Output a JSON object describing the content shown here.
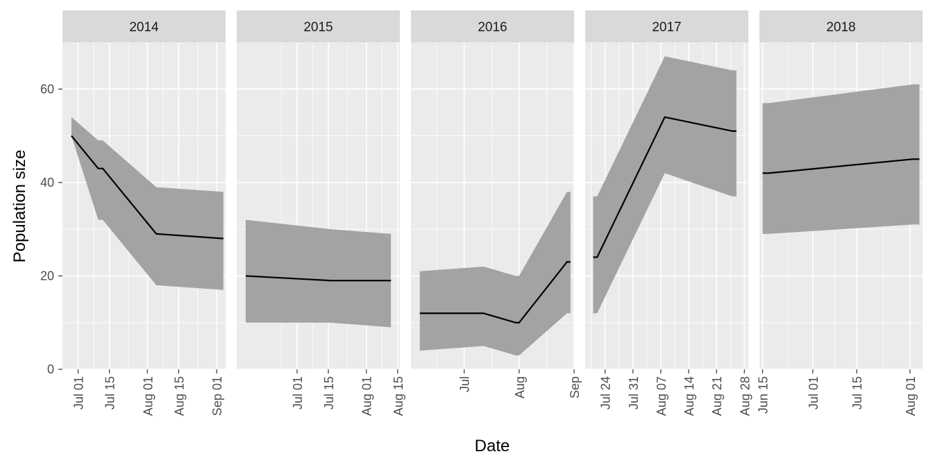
{
  "chart_data": {
    "type": "area",
    "xlabel": "Date",
    "ylabel": "Population size",
    "ylim": [
      0,
      70
    ],
    "y_ticks": [
      0,
      20,
      40,
      60
    ],
    "grid": true,
    "colors": {
      "panel_bg": "#ebebeb",
      "strip_bg": "#d9d9d9",
      "grid": "#ffffff",
      "ribbon": "#a3a3a3",
      "line": "#000000",
      "text": "#1a1a1a",
      "tick_text": "#4d4d4d"
    },
    "panels": [
      {
        "label": "2014",
        "xlim": [
          "2014-06-24",
          "2014-09-05"
        ],
        "x_ticks": [
          {
            "date": "2014-07-01",
            "label": "Jul 01"
          },
          {
            "date": "2014-07-15",
            "label": "Jul 15"
          },
          {
            "date": "2014-08-01",
            "label": "Aug 01"
          },
          {
            "date": "2014-08-15",
            "label": "Aug 15"
          },
          {
            "date": "2014-09-01",
            "label": "Sep 01"
          }
        ],
        "points": [
          {
            "x": "2014-06-28",
            "y": 50,
            "lower": 50,
            "upper": 54
          },
          {
            "x": "2014-07-10",
            "y": 43,
            "lower": 32,
            "upper": 49
          },
          {
            "x": "2014-07-12",
            "y": 43,
            "lower": 32,
            "upper": 49
          },
          {
            "x": "2014-08-05",
            "y": 29,
            "lower": 18,
            "upper": 39
          },
          {
            "x": "2014-09-04",
            "y": 28,
            "lower": 17,
            "upper": 38
          }
        ]
      },
      {
        "label": "2015",
        "xlim": [
          "2015-06-04",
          "2015-08-16"
        ],
        "x_ticks": [
          {
            "date": "2015-07-01",
            "label": "Jul 01"
          },
          {
            "date": "2015-07-15",
            "label": "Jul 15"
          },
          {
            "date": "2015-08-01",
            "label": "Aug 01"
          },
          {
            "date": "2015-08-15",
            "label": "Aug 15"
          }
        ],
        "points": [
          {
            "x": "2015-06-08",
            "y": 20,
            "lower": 10,
            "upper": 32
          },
          {
            "x": "2015-07-16",
            "y": 19,
            "lower": 10,
            "upper": 30
          },
          {
            "x": "2015-08-12",
            "y": 19,
            "lower": 9,
            "upper": 29
          }
        ]
      },
      {
        "label": "2016",
        "xlim": [
          "2016-06-01",
          "2016-09-01"
        ],
        "x_ticks": [
          {
            "date": "2016-07-01",
            "label": "Jul"
          },
          {
            "date": "2016-08-01",
            "label": "Aug"
          },
          {
            "date": "2016-09-01",
            "label": "Sep"
          }
        ],
        "points": [
          {
            "x": "2016-06-06",
            "y": 12,
            "lower": 4,
            "upper": 21
          },
          {
            "x": "2016-07-12",
            "y": 12,
            "lower": 5,
            "upper": 22
          },
          {
            "x": "2016-07-30",
            "y": 10,
            "lower": 3,
            "upper": 20
          },
          {
            "x": "2016-08-01",
            "y": 10,
            "lower": 3,
            "upper": 20
          },
          {
            "x": "2016-08-28",
            "y": 23,
            "lower": 12,
            "upper": 38
          },
          {
            "x": "2016-08-30",
            "y": 23,
            "lower": 12,
            "upper": 38
          }
        ]
      },
      {
        "label": "2017",
        "xlim": [
          "2017-07-19",
          "2017-08-29"
        ],
        "x_ticks": [
          {
            "date": "2017-07-24",
            "label": "Jul 24"
          },
          {
            "date": "2017-07-31",
            "label": "Jul 31"
          },
          {
            "date": "2017-08-07",
            "label": "Aug 07"
          },
          {
            "date": "2017-08-14",
            "label": "Aug 14"
          },
          {
            "date": "2017-08-21",
            "label": "Aug 21"
          },
          {
            "date": "2017-08-28",
            "label": "Aug 28"
          }
        ],
        "points": [
          {
            "x": "2017-07-21",
            "y": 24,
            "lower": 12,
            "upper": 37
          },
          {
            "x": "2017-07-22",
            "y": 24,
            "lower": 12,
            "upper": 37
          },
          {
            "x": "2017-08-08",
            "y": 54,
            "lower": 42,
            "upper": 67
          },
          {
            "x": "2017-08-25",
            "y": 51,
            "lower": 37,
            "upper": 64
          },
          {
            "x": "2017-08-26",
            "y": 51,
            "lower": 37,
            "upper": 64
          }
        ]
      },
      {
        "label": "2018",
        "xlim": [
          "2018-06-14",
          "2018-08-05"
        ],
        "x_ticks": [
          {
            "date": "2018-06-15",
            "label": "Jun 15"
          },
          {
            "date": "2018-07-01",
            "label": "Jul 01"
          },
          {
            "date": "2018-07-15",
            "label": "Jul 15"
          },
          {
            "date": "2018-08-01",
            "label": "Aug 01"
          }
        ],
        "points": [
          {
            "x": "2018-06-15",
            "y": 42,
            "lower": 29,
            "upper": 57
          },
          {
            "x": "2018-06-17",
            "y": 42,
            "lower": 29,
            "upper": 57
          },
          {
            "x": "2018-08-02",
            "y": 45,
            "lower": 31,
            "upper": 61
          },
          {
            "x": "2018-08-04",
            "y": 45,
            "lower": 31,
            "upper": 61
          }
        ]
      }
    ]
  }
}
